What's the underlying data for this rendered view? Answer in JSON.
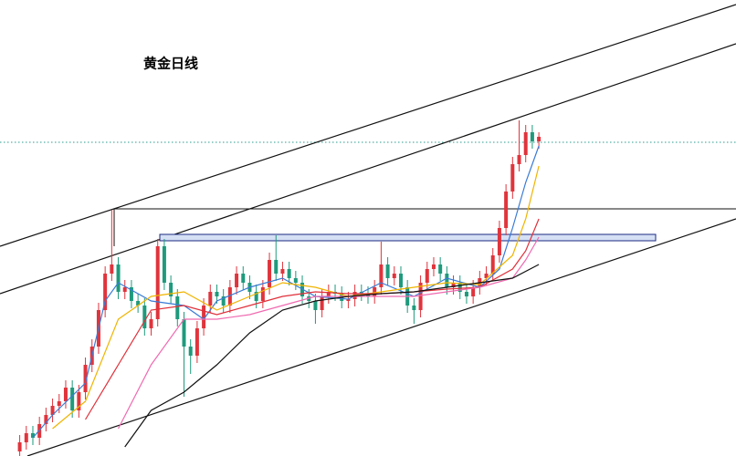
{
  "chart_data": {
    "type": "candlestick",
    "title": "黄金日线",
    "xlim": [
      -3,
      109
    ],
    "ylim": [
      0,
      500
    ],
    "up_color": "#e0343c",
    "down_color": "#1e9a7c",
    "open": [
      5,
      15,
      25,
      20,
      35,
      45,
      55,
      60,
      75,
      50,
      70,
      100,
      120,
      160,
      200,
      210,
      180,
      185,
      170,
      165,
      140,
      150,
      230,
      190,
      175,
      150,
      120,
      110,
      140,
      165,
      180,
      175,
      165,
      185,
      200,
      190,
      180,
      170,
      185,
      215,
      200,
      205,
      195,
      190,
      175,
      170,
      160,
      175,
      180,
      178,
      170,
      172,
      180,
      178,
      175,
      185,
      210,
      195,
      200,
      185,
      165,
      160,
      190,
      205,
      210,
      200,
      185,
      190,
      180,
      175,
      185,
      195,
      200,
      220,
      250,
      290,
      320,
      330,
      355,
      345
    ],
    "high": [
      23,
      33,
      33,
      43,
      53,
      63,
      68,
      83,
      83,
      78,
      108,
      128,
      168,
      208,
      270,
      218,
      193,
      193,
      178,
      173,
      158,
      238,
      238,
      198,
      183,
      158,
      128,
      148,
      173,
      188,
      188,
      183,
      193,
      208,
      208,
      198,
      188,
      193,
      223,
      242,
      213,
      213,
      203,
      198,
      183,
      178,
      183,
      188,
      188,
      186,
      180,
      188,
      188,
      186,
      193,
      235,
      218,
      208,
      208,
      193,
      173,
      198,
      213,
      218,
      218,
      208,
      198,
      198,
      188,
      193,
      203,
      208,
      228,
      258,
      298,
      328,
      368,
      363,
      363,
      355
    ],
    "low": [
      0,
      7,
      12,
      12,
      27,
      37,
      47,
      52,
      42,
      42,
      62,
      92,
      112,
      152,
      192,
      172,
      172,
      162,
      157,
      132,
      132,
      142,
      182,
      167,
      142,
      65,
      90,
      102,
      132,
      157,
      167,
      157,
      157,
      177,
      182,
      172,
      162,
      162,
      177,
      192,
      192,
      187,
      182,
      167,
      162,
      145,
      152,
      167,
      170,
      162,
      162,
      164,
      170,
      167,
      167,
      177,
      187,
      187,
      177,
      157,
      145,
      152,
      182,
      197,
      192,
      177,
      177,
      172,
      167,
      167,
      177,
      187,
      192,
      212,
      242,
      282,
      312,
      322,
      337,
      337
    ],
    "close": [
      15,
      25,
      20,
      35,
      45,
      55,
      60,
      75,
      50,
      70,
      100,
      120,
      160,
      200,
      210,
      180,
      185,
      170,
      165,
      140,
      150,
      230,
      190,
      175,
      150,
      120,
      110,
      140,
      165,
      180,
      175,
      165,
      185,
      200,
      190,
      180,
      170,
      185,
      215,
      200,
      205,
      195,
      190,
      175,
      170,
      160,
      175,
      180,
      178,
      170,
      172,
      180,
      178,
      175,
      185,
      210,
      195,
      200,
      185,
      165,
      160,
      190,
      205,
      210,
      200,
      185,
      190,
      180,
      175,
      185,
      195,
      200,
      220,
      250,
      290,
      320,
      330,
      355,
      345,
      350
    ],
    "series": [
      {
        "color": "#3a7bd5",
        "x": [
          2,
          5,
          10,
          13,
          15,
          20,
          25,
          28,
          30,
          35,
          40,
          45,
          50,
          55,
          60,
          65,
          70,
          73,
          75,
          77,
          79
        ],
        "values": [
          20,
          45,
          80,
          170,
          190,
          170,
          165,
          150,
          170,
          185,
          195,
          175,
          172,
          190,
          175,
          195,
          185,
          205,
          250,
          300,
          340
        ]
      },
      {
        "color": "#f0b400",
        "x": [
          5,
          10,
          15,
          20,
          25,
          30,
          35,
          40,
          45,
          50,
          55,
          60,
          65,
          70,
          75,
          77,
          79
        ],
        "values": [
          30,
          60,
          150,
          175,
          180,
          160,
          175,
          190,
          185,
          175,
          180,
          185,
          190,
          188,
          220,
          260,
          318
        ]
      },
      {
        "color": "#e0303a",
        "x": [
          10,
          15,
          20,
          25,
          30,
          35,
          40,
          45,
          50,
          55,
          60,
          65,
          70,
          75,
          77,
          79
        ],
        "values": [
          40,
          100,
          160,
          165,
          155,
          165,
          175,
          180,
          178,
          178,
          180,
          183,
          185,
          205,
          225,
          260
        ]
      },
      {
        "color": "#f06ab0",
        "x": [
          15,
          20,
          25,
          30,
          35,
          40,
          45,
          50,
          55,
          60,
          65,
          70,
          75,
          77,
          79
        ],
        "values": [
          30,
          100,
          150,
          150,
          155,
          165,
          175,
          175,
          175,
          175,
          180,
          185,
          195,
          215,
          240
        ]
      },
      {
        "color": "#111111",
        "x": [
          16,
          20,
          25,
          30,
          35,
          40,
          45,
          50,
          55,
          60,
          65,
          70,
          75,
          79
        ],
        "values": [
          10,
          50,
          70,
          100,
          135,
          160,
          170,
          175,
          178,
          180,
          185,
          190,
          195,
          210
        ]
      }
    ]
  }
}
